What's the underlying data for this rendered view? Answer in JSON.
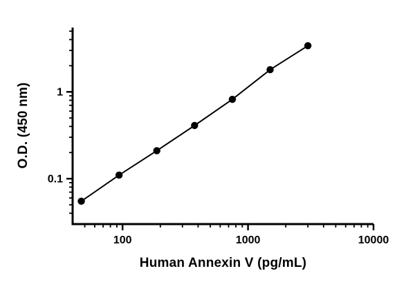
{
  "figure": {
    "background": "#ffffff"
  },
  "chart_data": {
    "type": "scatter",
    "title": "",
    "xlabel": "Human Annexin V (pg/mL)",
    "ylabel": "O.D. (450 nm)",
    "xscale": "log",
    "yscale": "log",
    "xlim": [
      40,
      10000
    ],
    "ylim": [
      0.03,
      5.5
    ],
    "x": [
      46.9,
      93.8,
      187.5,
      375,
      750,
      1500,
      3000
    ],
    "y": [
      0.055,
      0.11,
      0.21,
      0.41,
      0.82,
      1.8,
      3.4
    ],
    "x_major_ticks": [
      100,
      1000,
      10000
    ],
    "x_tick_labels": [
      "100",
      "1000",
      "10000"
    ],
    "y_major_ticks": [
      0.1,
      1
    ],
    "y_tick_labels": [
      "0.1",
      "1"
    ],
    "line": true,
    "grid": false,
    "legend": false,
    "marker": {
      "shape": "circle",
      "color": "#000000",
      "size": 10
    },
    "line_color": "#000000",
    "axis_color": "#000000"
  }
}
